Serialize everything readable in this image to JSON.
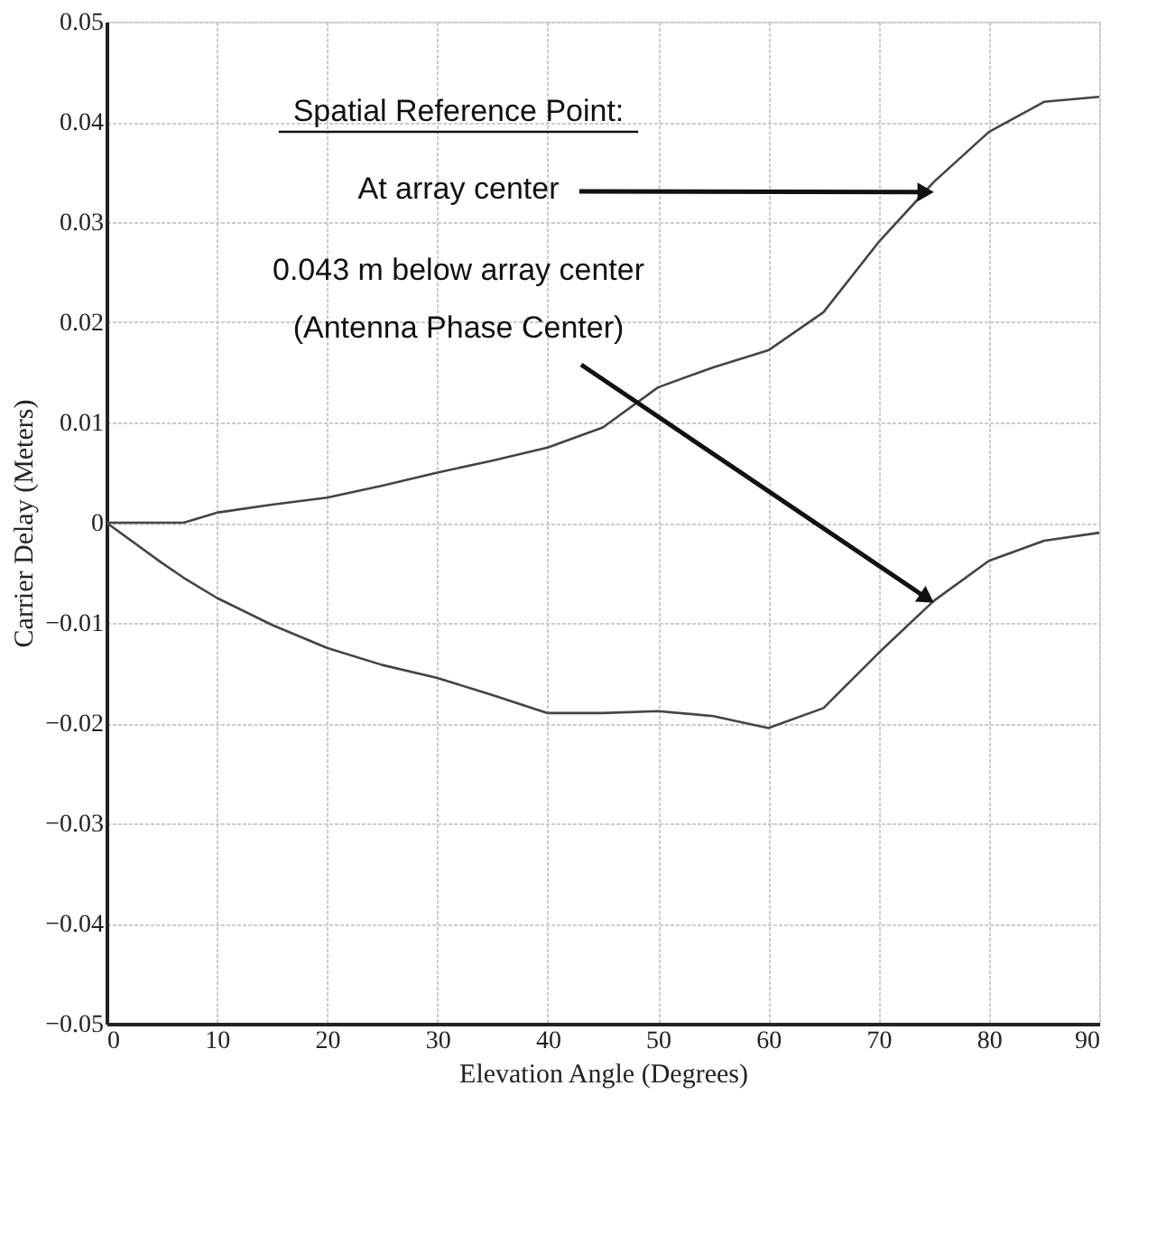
{
  "chart_data": {
    "type": "line",
    "xlabel": "Elevation Angle (Degrees)",
    "ylabel": "Carrier Delay (Meters)",
    "xlim": [
      0,
      90
    ],
    "xticks": [
      0,
      10,
      20,
      30,
      40,
      50,
      60,
      70,
      80,
      90
    ],
    "ylim": [
      -0.05,
      0.05
    ],
    "yticks": [
      -0.05,
      -0.04,
      -0.03,
      -0.02,
      -0.01,
      0,
      0.01,
      0.02,
      0.03,
      0.04,
      0.05
    ],
    "grid": true,
    "line_style": "solid",
    "marker": "none",
    "x": [
      0,
      5,
      7,
      10,
      15,
      20,
      25,
      30,
      35,
      40,
      45,
      50,
      55,
      60,
      65,
      70,
      75,
      80,
      85,
      90
    ],
    "series": [
      {
        "color": "#444444",
        "values": [
          0,
          0,
          0,
          0.001,
          0.0018,
          0.0025,
          0.0037,
          0.005,
          0.0062,
          0.0075,
          0.0095,
          0.0135,
          0.0155,
          0.0172,
          0.021,
          0.028,
          0.034,
          0.039,
          0.042,
          0.0425
        ]
      },
      {
        "color": "#444444",
        "values": [
          0,
          -0.004,
          -0.0055,
          -0.0075,
          -0.0102,
          -0.0125,
          -0.0142,
          -0.0155,
          -0.0172,
          -0.019,
          -0.019,
          -0.0188,
          -0.0193,
          -0.0205,
          -0.0185,
          -0.013,
          -0.0078,
          -0.0038,
          -0.0018,
          -0.001
        ]
      }
    ],
    "annotations": [
      "Spatial Reference Point:",
      {
        "text": "At array center",
        "x": 75,
        "y": 0.033
      },
      {
        "text": "0.043 m below array center\n(Antenna Phase Center)",
        "x": 75,
        "y": -0.008
      }
    ]
  }
}
